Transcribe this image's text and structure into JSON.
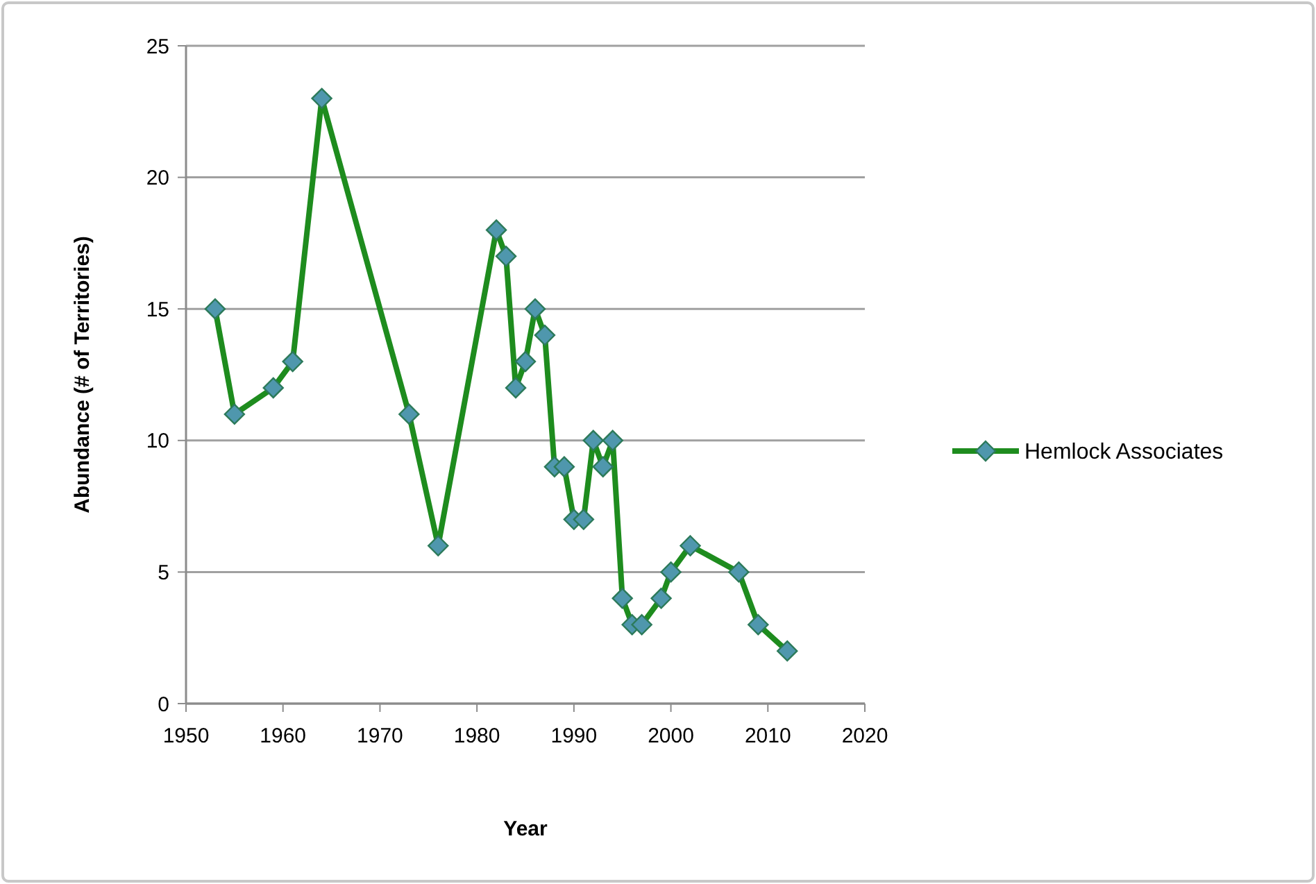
{
  "chart_data": {
    "type": "line",
    "xlabel": "Year",
    "ylabel": "Abundance (# of Territories)",
    "x": [
      1953,
      1955,
      1959,
      1961,
      1964,
      1973,
      1976,
      1982,
      1983,
      1984,
      1985,
      1986,
      1987,
      1988,
      1989,
      1990,
      1991,
      1992,
      1993,
      1994,
      1995,
      1996,
      1997,
      1999,
      2000,
      2002,
      2007,
      2009,
      2012
    ],
    "series": [
      {
        "name": "Hemlock Associates",
        "color": "#1e8c1e",
        "values": [
          15,
          11,
          12,
          13,
          23,
          11,
          6,
          18,
          17,
          12,
          13,
          15,
          14,
          9,
          9,
          7,
          7,
          10,
          9,
          10,
          4,
          3,
          3,
          4,
          5,
          6,
          5,
          3,
          2
        ]
      }
    ],
    "xlim": [
      1950,
      2020
    ],
    "xticks": [
      1950,
      1960,
      1970,
      1980,
      1990,
      2000,
      2010,
      2020
    ],
    "ylim": [
      0,
      25
    ],
    "yticks": [
      0,
      5,
      10,
      15,
      20,
      25
    ],
    "grid": "y",
    "legend": "right",
    "marker": "diamond",
    "line_style": "solid"
  }
}
